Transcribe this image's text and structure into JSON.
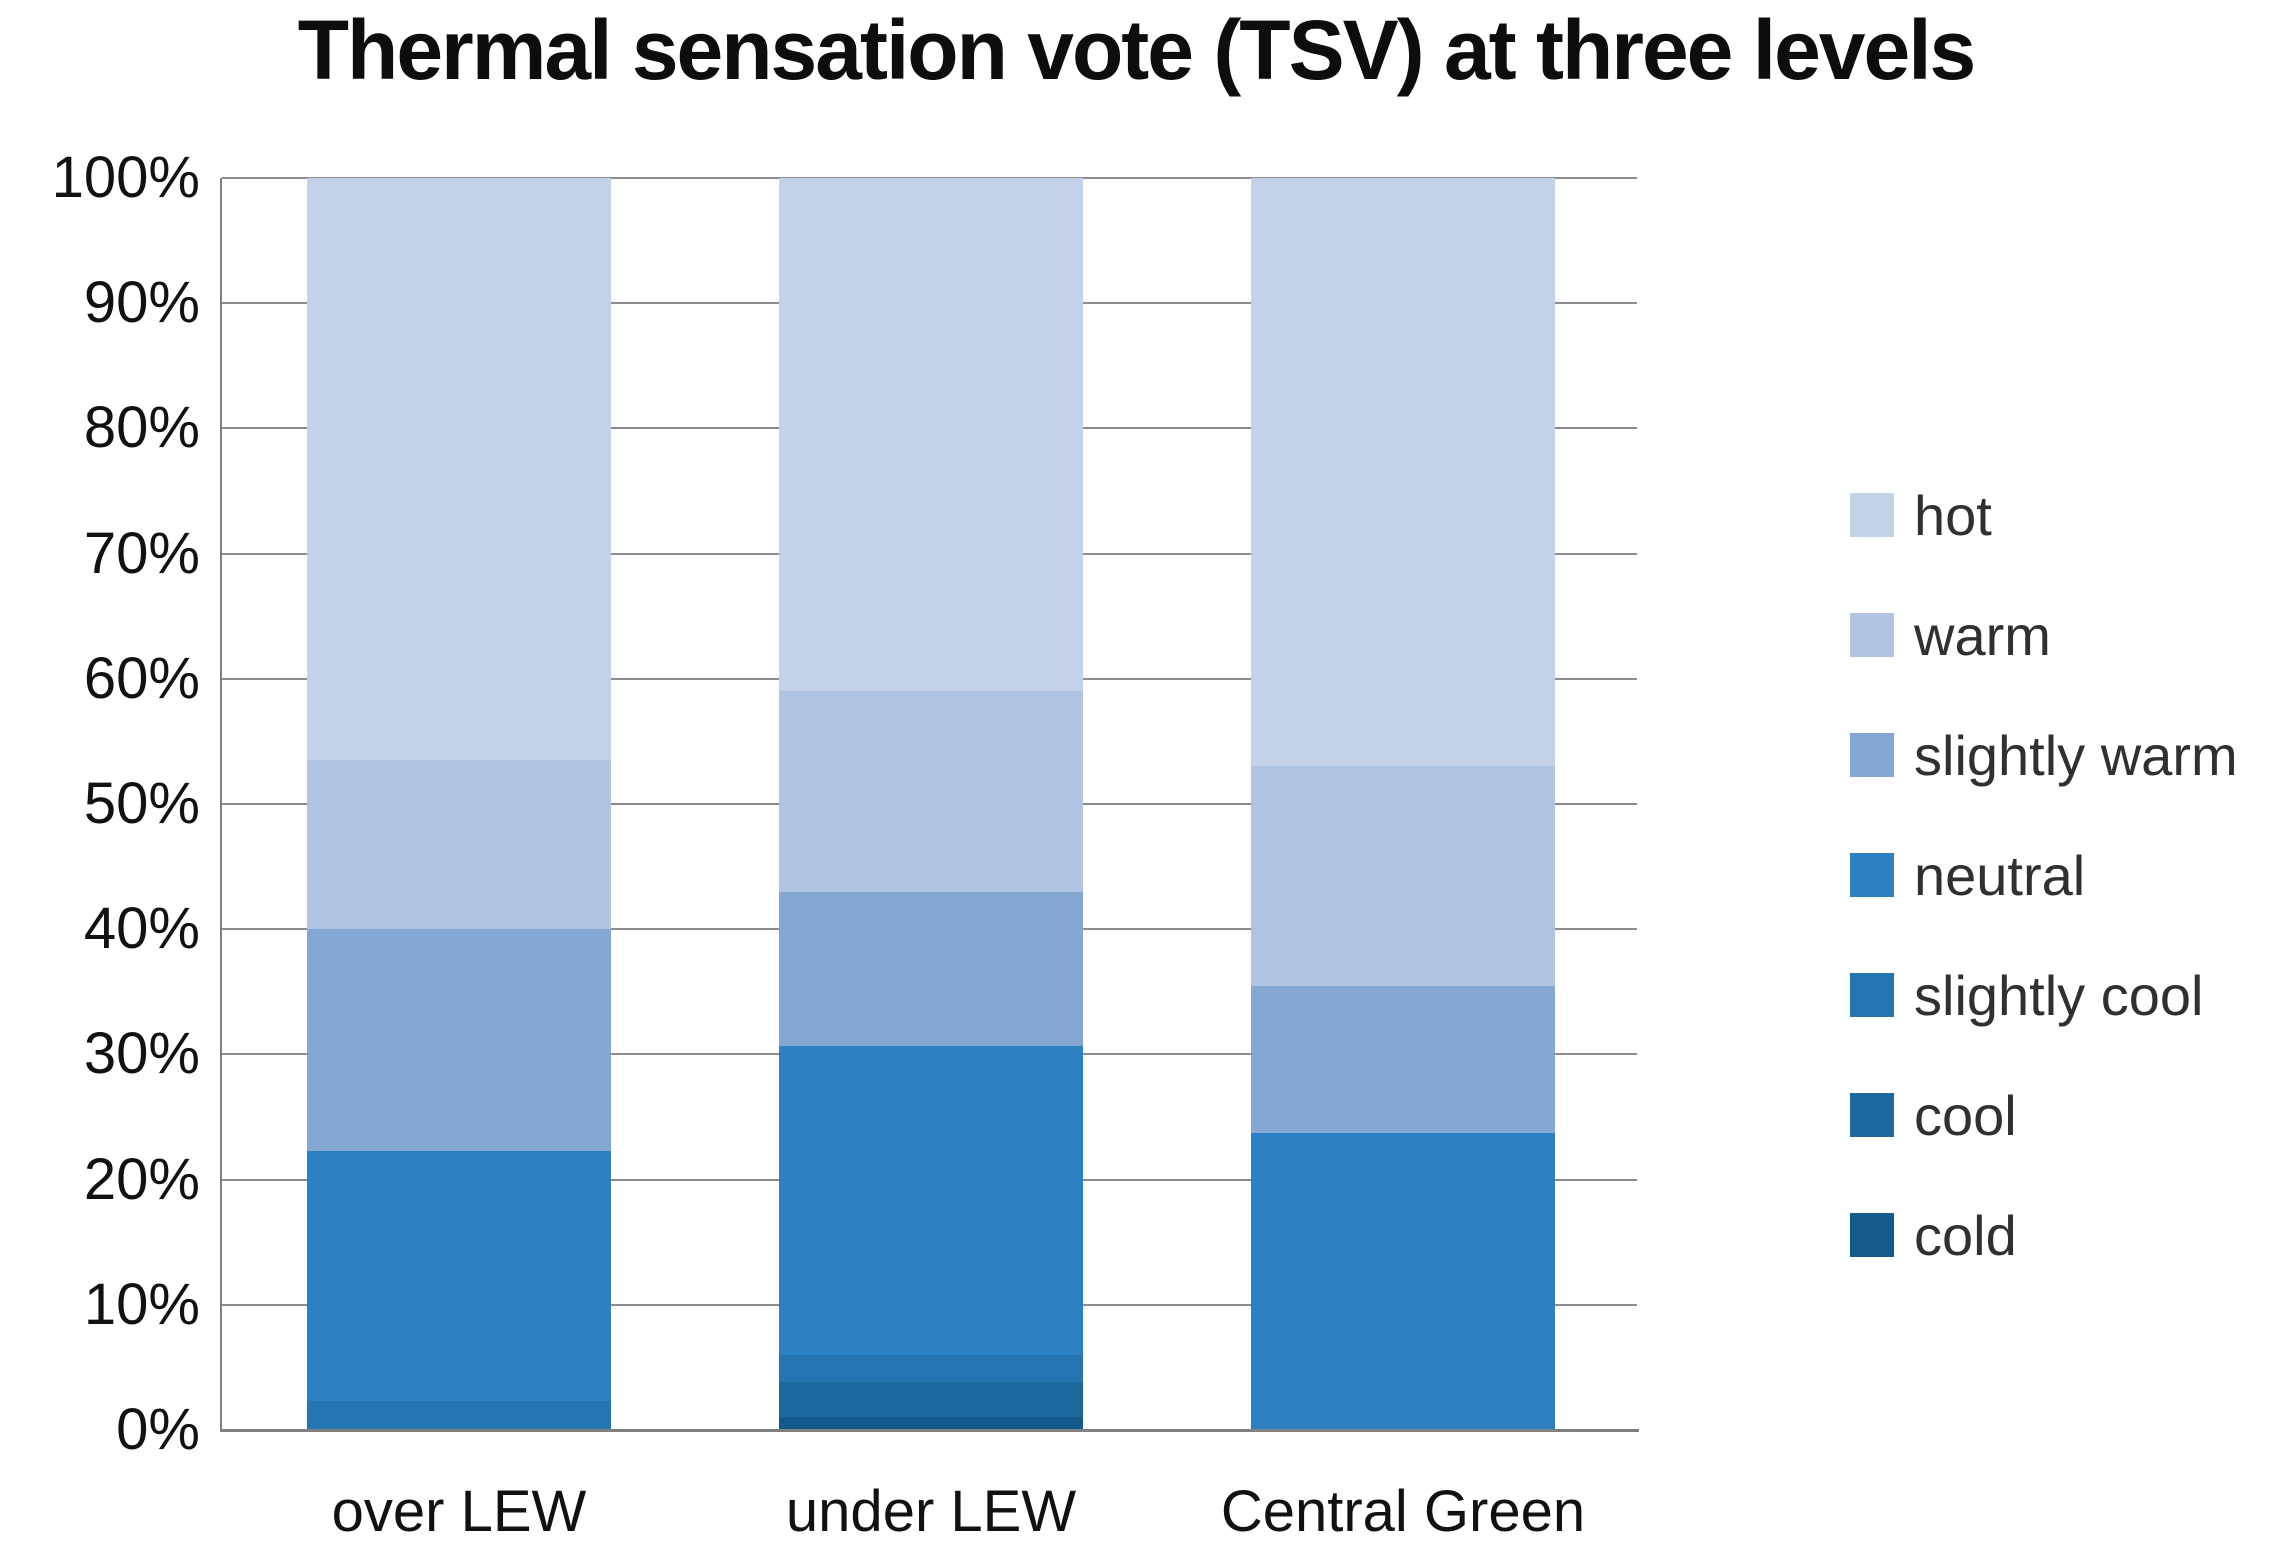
{
  "title": "Thermal sensation vote (TSV) at three levels",
  "chart_data": {
    "type": "bar",
    "stacked": true,
    "units": "percent",
    "title": "Thermal sensation vote (TSV) at three levels",
    "categories": [
      "over LEW",
      "under LEW",
      "Central Green"
    ],
    "series": [
      {
        "name": "hot",
        "color": "#c3d2e8",
        "values": [
          46.5,
          41.0,
          47.0
        ]
      },
      {
        "name": "warm",
        "color": "#aec4e2",
        "values": [
          13.5,
          16.0,
          17.5
        ]
      },
      {
        "name": "slightly warm",
        "color": "#85a8d2",
        "values": [
          17.7,
          12.3,
          11.8
        ]
      },
      {
        "name": "neutral",
        "color": "#2a80c2",
        "values": [
          20.0,
          24.7,
          23.7
        ]
      },
      {
        "name": "slightly cool",
        "color": "#2575b3",
        "values": [
          2.3,
          2.2,
          0.0
        ]
      },
      {
        "name": "cool",
        "color": "#1d689f",
        "values": [
          0.0,
          2.8,
          0.0
        ]
      },
      {
        "name": "cold",
        "color": "#155a8c",
        "values": [
          0.0,
          1.0,
          0.0
        ]
      }
    ],
    "stack_order_bottom_to_top": [
      "cold",
      "cool",
      "slightly cool",
      "neutral",
      "slightly warm",
      "warm",
      "hot"
    ],
    "xlabel": "",
    "ylabel": "",
    "ylim": [
      0,
      100
    ],
    "yticks": [
      "100%",
      "90%",
      "80%",
      "70%",
      "60%",
      "50%",
      "40%",
      "30%",
      "20%",
      "10%",
      "0%"
    ],
    "grid": true,
    "gridline_color": "#8c8c8c",
    "axis_color": "#808080",
    "legend_position": "right",
    "text_color": "#111111"
  }
}
